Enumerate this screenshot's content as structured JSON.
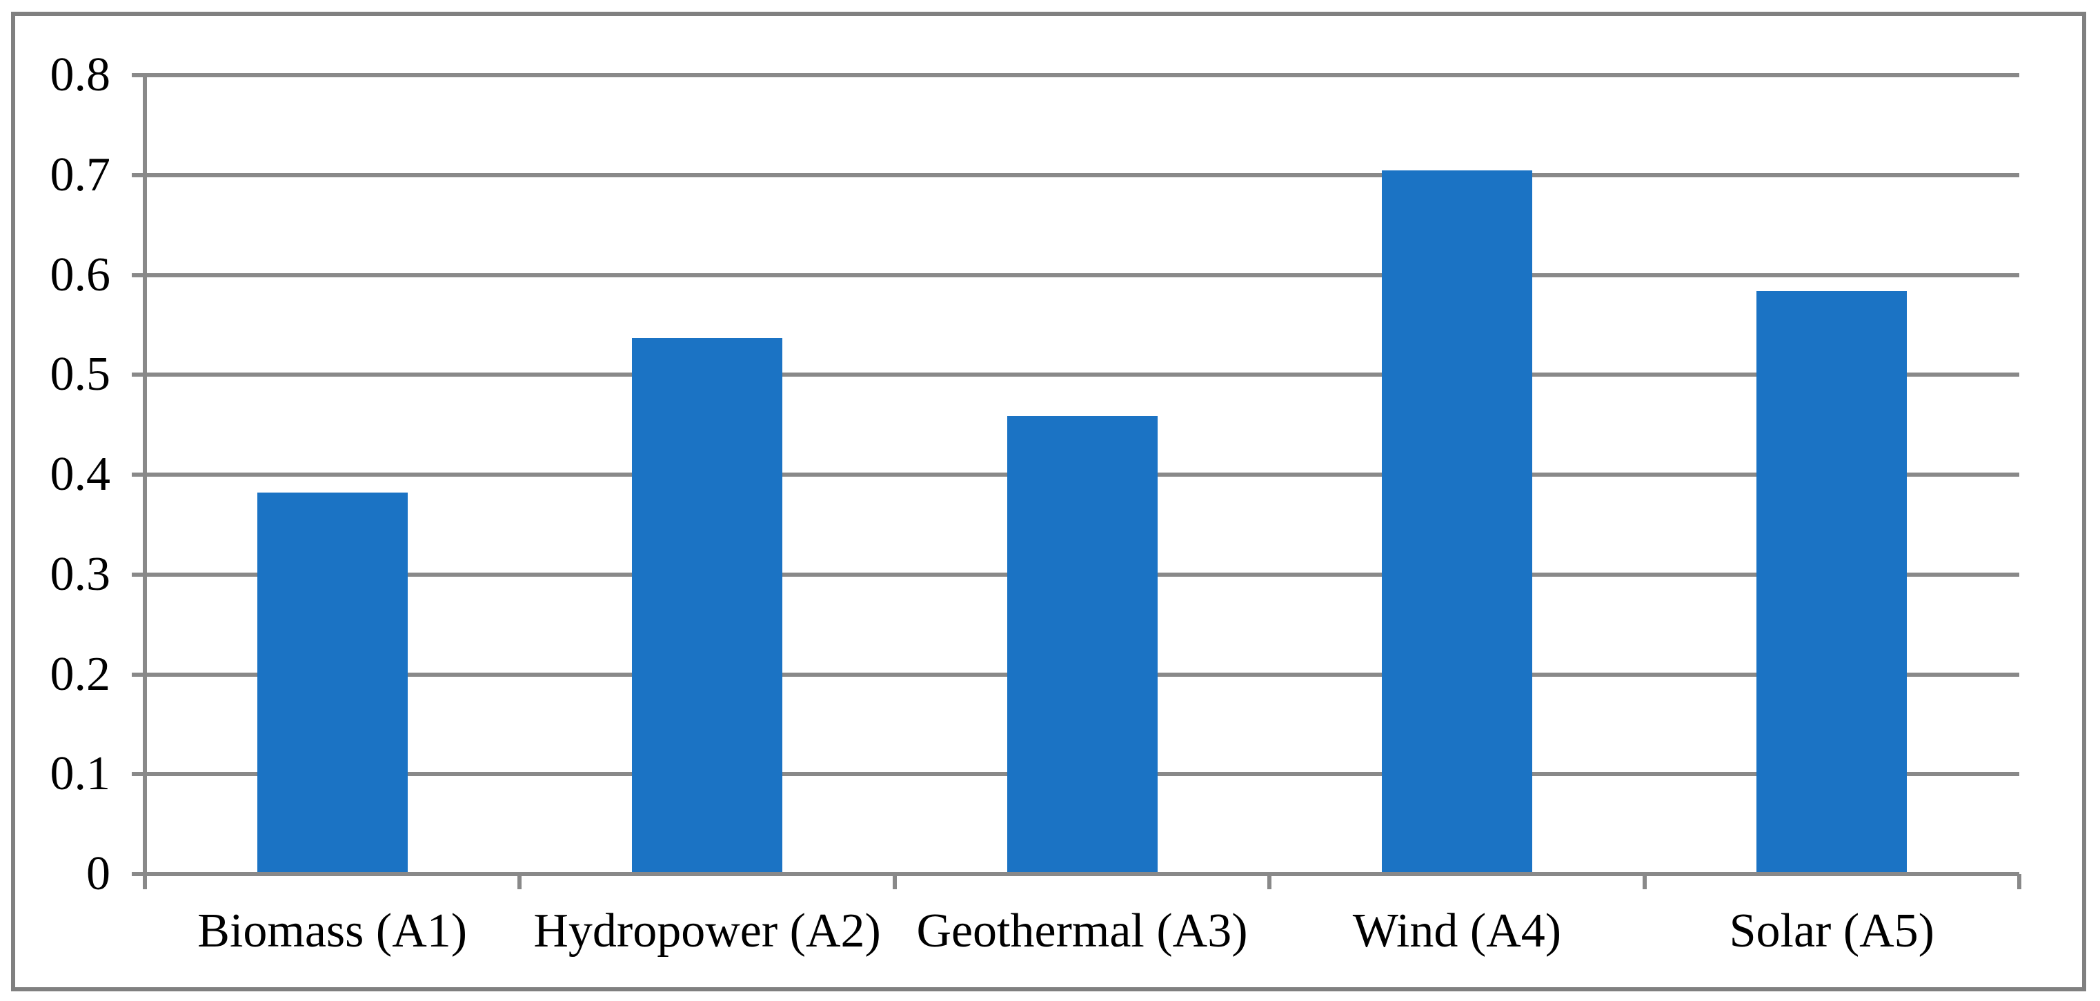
{
  "figure": {
    "background": "#FFFFFF",
    "border_color": "#808080"
  },
  "chart_data": {
    "type": "bar",
    "title": "",
    "xlabel": "",
    "ylabel": "",
    "categories": [
      "Biomass (A1)",
      "Hydropower (A2)",
      "Geothermal (A3)",
      "Wind (A4)",
      "Solar (A5)"
    ],
    "values": [
      0.382,
      0.537,
      0.459,
      0.705,
      0.584
    ],
    "ylim": [
      0,
      0.8
    ],
    "yticks": [
      0,
      0.1,
      0.2,
      0.3,
      0.4,
      0.5,
      0.6,
      0.7,
      0.8
    ],
    "ytick_labels": [
      "0",
      "0.1",
      "0.2",
      "0.3",
      "0.4",
      "0.5",
      "0.6",
      "0.7",
      "0.8"
    ],
    "grid": true,
    "legend": false,
    "bar_color": "#1B73C4",
    "grid_color": "#898989",
    "axis_color": "#898989",
    "text_color": "#000000"
  }
}
